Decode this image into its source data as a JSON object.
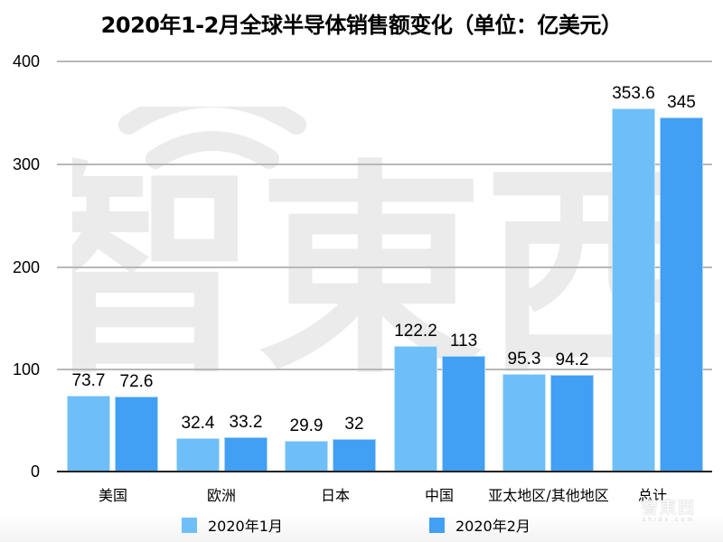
{
  "title": "2020年1-2月全球半导体销售额变化（单位：亿美元）",
  "watermark": {
    "main": "智東西",
    "small_cn": "智東西",
    "small_en": "zhidx.com"
  },
  "colors": {
    "series1": "#6ebff7",
    "series2": "#419ff4",
    "grid": "#b8b8b8",
    "axis": "#222222"
  },
  "y_ticks": [
    "0",
    "100",
    "200",
    "300",
    "400"
  ],
  "categories": [
    "美国",
    "欧洲",
    "日本",
    "中国",
    "亚太地区/其他地区",
    "总计"
  ],
  "legend": [
    "2020年1月",
    "2020年2月"
  ],
  "bar_labels": {
    "s1": [
      "73.7",
      "32.4",
      "29.9",
      "122.2",
      "95.3",
      "353.6"
    ],
    "s2": [
      "72.6",
      "33.2",
      "32",
      "113",
      "94.2",
      "345"
    ]
  },
  "chart_data": {
    "type": "bar",
    "title": "2020年1-2月全球半导体销售额变化（单位：亿美元）",
    "xlabel": "",
    "ylabel": "",
    "categories": [
      "美国",
      "欧洲",
      "日本",
      "中国",
      "亚太地区/其他地区",
      "总计"
    ],
    "series": [
      {
        "name": "2020年1月",
        "color": "#6ebff7",
        "values": [
          73.7,
          32.4,
          29.9,
          122.2,
          95.3,
          353.6
        ]
      },
      {
        "name": "2020年2月",
        "color": "#419ff4",
        "values": [
          72.6,
          33.2,
          32,
          113,
          94.2,
          345
        ]
      }
    ],
    "ylim": [
      0,
      400
    ],
    "yticks": [
      0,
      100,
      200,
      300,
      400
    ],
    "grid": true,
    "legend_position": "bottom",
    "data_labels": true
  }
}
